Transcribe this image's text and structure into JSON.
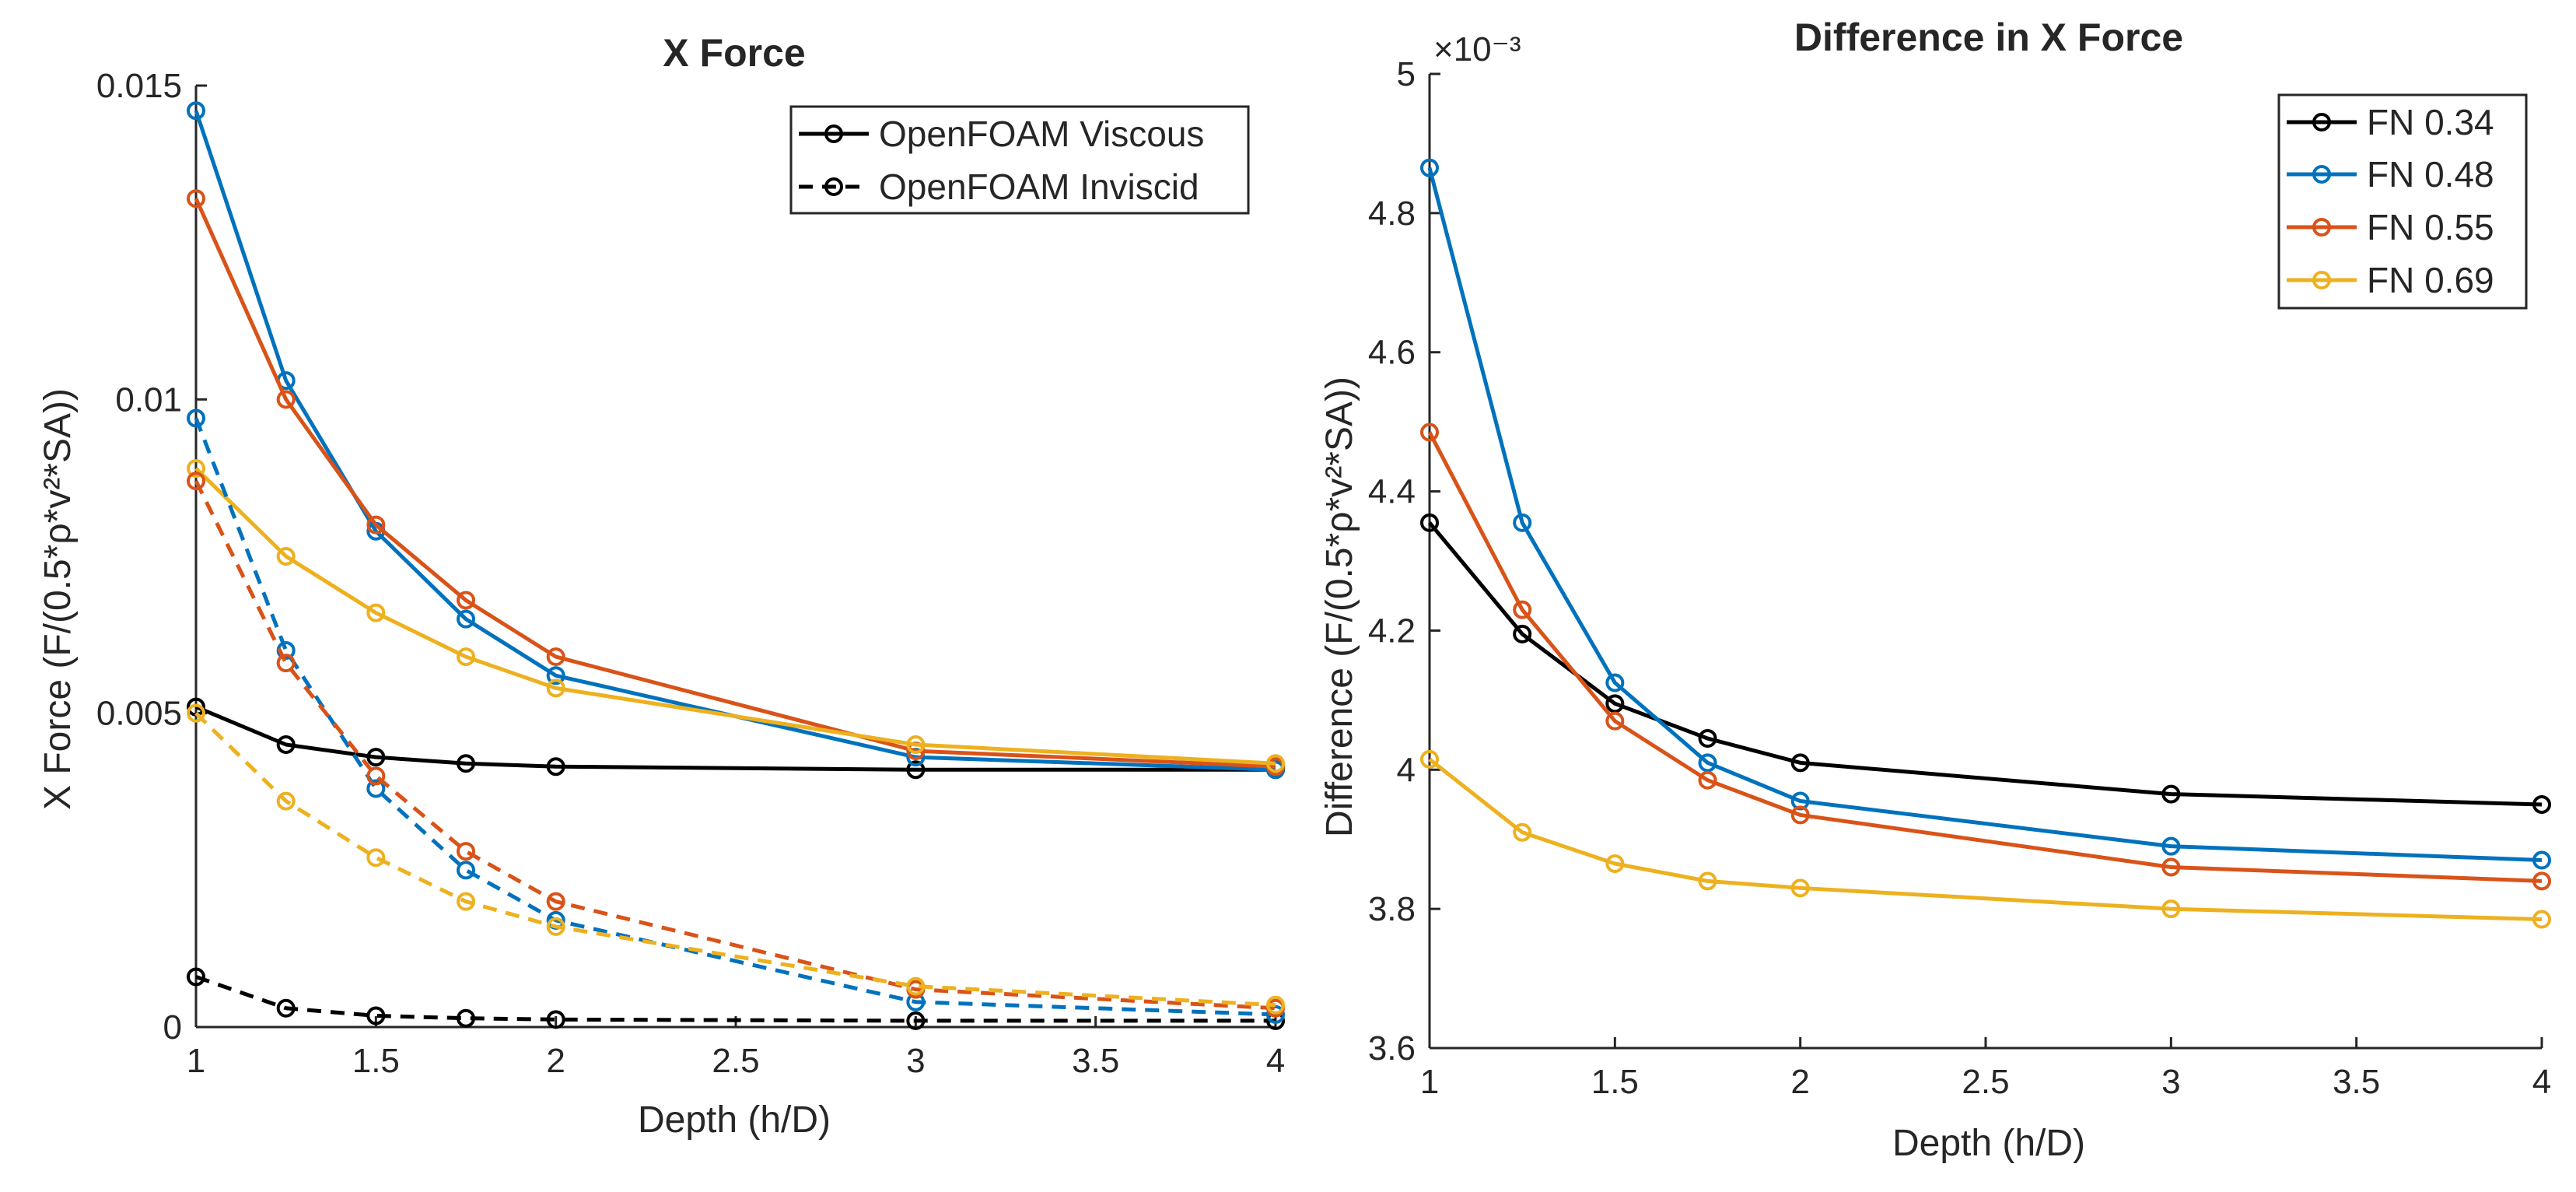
{
  "chart_data": [
    {
      "type": "line",
      "title": "X Force",
      "xlabel": "Depth (h/D)",
      "ylabel": "X Force (F/(0.5*ρ*v²*SA))",
      "xlim": [
        1,
        4
      ],
      "ylim": [
        0,
        0.015
      ],
      "xticks": [
        1,
        1.5,
        2,
        2.5,
        3,
        3.5,
        4
      ],
      "xtick_labels": [
        "1",
        "1.5",
        "2",
        "2.5",
        "3",
        "3.5",
        "4"
      ],
      "yticks": [
        0,
        0.005,
        0.01,
        0.015
      ],
      "ytick_labels": [
        "0",
        "0.005",
        "0.01",
        "0.015"
      ],
      "legend": {
        "position": "top-right",
        "entries": [
          {
            "label": "OpenFOAM Viscous",
            "style": "solid"
          },
          {
            "label": "OpenFOAM Inviscid",
            "style": "dashed"
          }
        ]
      },
      "x": [
        1,
        1.25,
        1.5,
        1.75,
        2,
        3,
        4
      ],
      "series": [
        {
          "name": "FN 0.34 Viscous",
          "color": "#000000",
          "style": "solid",
          "values": [
            0.0051,
            0.0045,
            0.0043,
            0.0042,
            0.00415,
            0.0041,
            0.0041
          ]
        },
        {
          "name": "FN 0.48 Viscous",
          "color": "#0072BD",
          "style": "solid",
          "values": [
            0.0146,
            0.0103,
            0.0079,
            0.0065,
            0.0056,
            0.0043,
            0.0041
          ]
        },
        {
          "name": "FN 0.55 Viscous",
          "color": "#D95319",
          "style": "solid",
          "values": [
            0.0132,
            0.01,
            0.008,
            0.0068,
            0.0059,
            0.0044,
            0.00415
          ]
        },
        {
          "name": "FN 0.69 Viscous",
          "color": "#EDB120",
          "style": "solid",
          "values": [
            0.0089,
            0.0075,
            0.0066,
            0.0059,
            0.0054,
            0.0045,
            0.0042
          ]
        },
        {
          "name": "FN 0.34 Inviscid",
          "color": "#000000",
          "style": "dashed",
          "values": [
            0.0008,
            0.0003,
            0.00018,
            0.00014,
            0.00012,
            0.0001,
            0.0001
          ]
        },
        {
          "name": "FN 0.48 Inviscid",
          "color": "#0072BD",
          "style": "dashed",
          "values": [
            0.0097,
            0.006,
            0.0038,
            0.0025,
            0.0017,
            0.0004,
            0.0002
          ]
        },
        {
          "name": "FN 0.55 Inviscid",
          "color": "#D95319",
          "style": "dashed",
          "values": [
            0.0087,
            0.0058,
            0.004,
            0.0028,
            0.002,
            0.0006,
            0.0003
          ]
        },
        {
          "name": "FN 0.69 Inviscid",
          "color": "#EDB120",
          "style": "dashed",
          "values": [
            0.005,
            0.0036,
            0.0027,
            0.002,
            0.0016,
            0.00065,
            0.00035
          ]
        }
      ]
    },
    {
      "type": "line",
      "title": "Difference in X Force",
      "xlabel": "Depth (h/D)",
      "ylabel": "Difference (F/(0.5*ρ*v²*SA))",
      "exponent_label": "×10⁻³",
      "xlim": [
        1,
        4
      ],
      "ylim": [
        3.6,
        5.0
      ],
      "xticks": [
        1,
        1.5,
        2,
        2.5,
        3,
        3.5,
        4
      ],
      "xtick_labels": [
        "1",
        "1.5",
        "2",
        "2.5",
        "3",
        "3.5",
        "4"
      ],
      "yticks": [
        3.6,
        3.8,
        4.0,
        4.2,
        4.4,
        4.6,
        4.8,
        5.0
      ],
      "ytick_labels": [
        "3.6",
        "3.8",
        "4",
        "4.2",
        "4.4",
        "4.6",
        "4.8",
        "5"
      ],
      "legend": {
        "position": "top-right",
        "entries": [
          {
            "label": "FN 0.34",
            "style": "solid"
          },
          {
            "label": "FN 0.48",
            "style": "solid"
          },
          {
            "label": "FN 0.55",
            "style": "solid"
          },
          {
            "label": "FN 0.69",
            "style": "solid"
          }
        ]
      },
      "x": [
        1,
        1.25,
        1.5,
        1.75,
        2,
        3,
        4
      ],
      "series": [
        {
          "name": "FN 0.34",
          "color": "#000000",
          "style": "solid",
          "values": [
            4.355,
            4.195,
            4.095,
            4.045,
            4.01,
            3.965,
            3.95
          ]
        },
        {
          "name": "FN 0.48",
          "color": "#0072BD",
          "style": "solid",
          "values": [
            4.865,
            4.355,
            4.125,
            4.01,
            3.955,
            3.89,
            3.87
          ]
        },
        {
          "name": "FN 0.55",
          "color": "#D95319",
          "style": "solid",
          "values": [
            4.485,
            4.23,
            4.07,
            3.985,
            3.935,
            3.86,
            3.84
          ]
        },
        {
          "name": "FN 0.69",
          "color": "#EDB120",
          "style": "solid",
          "values": [
            4.015,
            3.91,
            3.865,
            3.84,
            3.83,
            3.8,
            3.785
          ]
        }
      ]
    }
  ]
}
